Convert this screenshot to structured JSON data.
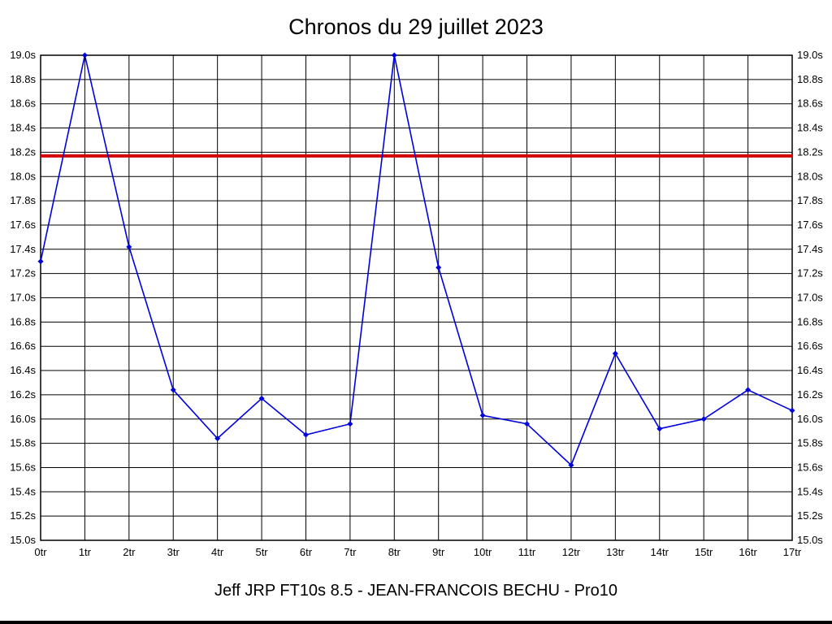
{
  "title": "Chronos du 29 juillet 2023",
  "footer": "Jeff JRP FT10s 8.5 - JEAN-FRANCOIS BECHU - Pro10",
  "chart_data": {
    "type": "line",
    "title": "Chronos du 29 juillet 2023",
    "x_labels": [
      "0tr",
      "1tr",
      "2tr",
      "3tr",
      "4tr",
      "5tr",
      "6tr",
      "7tr",
      "8tr",
      "9tr",
      "10tr",
      "11tr",
      "12tr",
      "13tr",
      "14tr",
      "15tr",
      "16tr",
      "17tr"
    ],
    "values": [
      17.3,
      19.0,
      17.42,
      16.24,
      15.84,
      16.17,
      15.87,
      15.96,
      19.0,
      17.25,
      16.03,
      15.96,
      15.62,
      16.54,
      15.92,
      16.0,
      16.24,
      16.07
    ],
    "reference_line": 18.17,
    "ylim": [
      15.0,
      19.0
    ],
    "y_tick_step": 0.2,
    "y_tick_labels": [
      "19.0s",
      "18.8s",
      "18.6s",
      "18.4s",
      "18.2s",
      "18.0s",
      "17.8s",
      "17.6s",
      "17.4s",
      "17.2s",
      "17.0s",
      "16.8s",
      "16.6s",
      "16.4s",
      "16.2s",
      "16.0s",
      "15.8s",
      "15.6s",
      "15.4s",
      "15.2s",
      "15.0s"
    ],
    "grid": true,
    "legend": "none",
    "marker": "diamond",
    "line_color": "#0000dd",
    "ref_line_color": "#d40000",
    "grid_color": "#000000",
    "xlabel": "",
    "ylabel": ""
  }
}
